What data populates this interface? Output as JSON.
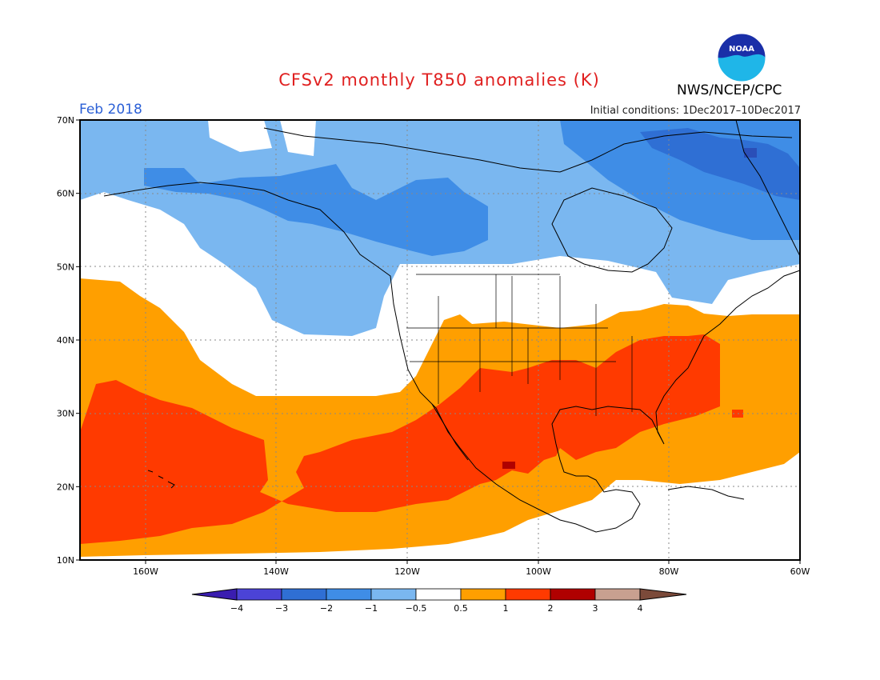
{
  "header": {
    "title": "CFSv2 monthly T850 anomalies (K)",
    "month": "Feb 2018",
    "initial_conditions": "Initial conditions: 1Dec2017–10Dec2017",
    "org": "NWS/NCEP/CPC",
    "logo_text": "NOAA"
  },
  "map": {
    "lat_labels": [
      "70N",
      "60N",
      "50N",
      "40N",
      "30N",
      "20N",
      "10N"
    ],
    "lon_labels": [
      "160W",
      "140W",
      "120W",
      "100W",
      "80W",
      "60W"
    ],
    "grid": true
  },
  "colorbar": {
    "labels": [
      "−4",
      "−3",
      "−2",
      "−1",
      "−0.5",
      "0.5",
      "1",
      "2",
      "3",
      "4"
    ],
    "colors": [
      "#3a1db0",
      "#4b43d6",
      "#2f6fd4",
      "#3f8de6",
      "#7ab7f0",
      "#ffffff",
      "#ff9f00",
      "#ff3a00",
      "#b00000",
      "#c8a090",
      "#7b4a3a"
    ]
  },
  "colors": {
    "strong_negative": "#3a78dd",
    "negative": "#7ab7f0",
    "positive": "#ff9f00",
    "strong_positive": "#ff3a00",
    "extreme_positive": "#b00000",
    "title": "#e02020"
  }
}
